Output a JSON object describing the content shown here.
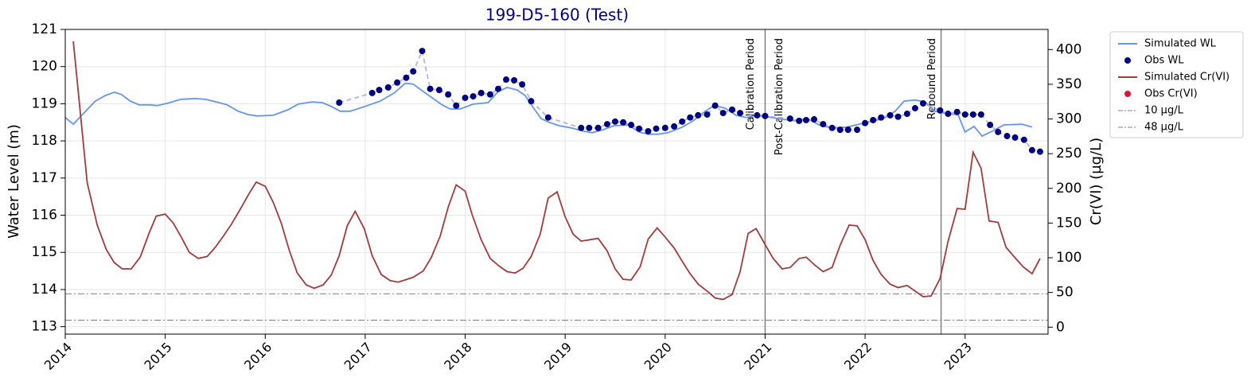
{
  "chart_data": {
    "type": "line",
    "title": "199-D5-160 (Test)",
    "ylabel": "Water Level (m)",
    "y2label": "Cr(VI) (µg/L)",
    "xlim": [
      2014,
      2023.83
    ],
    "xticks": [
      2014,
      2015,
      2016,
      2017,
      2018,
      2019,
      2020,
      2021,
      2022,
      2023
    ],
    "ylim": [
      112.8,
      121
    ],
    "yticks": [
      113,
      114,
      115,
      116,
      117,
      118,
      119,
      120,
      121
    ],
    "y2lim": [
      -10,
      429
    ],
    "y2ticks": [
      0,
      50,
      100,
      150,
      200,
      250,
      300,
      350,
      400
    ],
    "grid": true,
    "legend": "outside right",
    "series": [
      {
        "name": "Simulated WL",
        "color": "#6495ed",
        "kind": "line",
        "x": [
          2014.0,
          2014.08,
          2014.18,
          2014.3,
          2014.4,
          2014.49,
          2014.56,
          2014.65,
          2014.74,
          2014.85,
          2014.92,
          2015.02,
          2015.16,
          2015.3,
          2015.4,
          2015.51,
          2015.62,
          2015.73,
          2015.83,
          2015.92,
          2016.08,
          2016.23,
          2016.33,
          2016.47,
          2016.57,
          2016.66,
          2016.75,
          2016.85,
          2017.0,
          2017.15,
          2017.29,
          2017.4,
          2017.48,
          2017.58,
          2017.68,
          2017.77,
          2017.85,
          2017.95,
          2018.08,
          2018.23,
          2018.33,
          2018.42,
          2018.52,
          2018.6,
          2018.68,
          2018.76,
          2018.84,
          2018.94,
          2019.06,
          2019.19,
          2019.27,
          2019.38,
          2019.49,
          2019.63,
          2019.74,
          2019.83,
          2019.93,
          2020.03,
          2020.17,
          2020.28,
          2020.4,
          2020.49,
          2020.6,
          2020.71,
          2020.81,
          2020.92,
          2021.02,
          2021.18,
          2021.3,
          2021.42,
          2021.54,
          2021.66,
          2021.82,
          2021.94,
          2022.06,
          2022.18,
          2022.3,
          2022.39,
          2022.5,
          2022.6,
          2022.7,
          2022.82,
          2022.93,
          2023.0,
          2023.09,
          2023.17,
          2023.27,
          2023.39,
          2023.57,
          2023.67
        ],
        "values": [
          118.63,
          118.45,
          118.73,
          119.07,
          119.22,
          119.31,
          119.25,
          119.07,
          118.97,
          118.97,
          118.95,
          119.01,
          119.12,
          119.14,
          119.12,
          119.05,
          118.97,
          118.8,
          118.71,
          118.67,
          118.69,
          118.84,
          118.99,
          119.05,
          119.03,
          118.93,
          118.8,
          118.8,
          118.93,
          119.07,
          119.29,
          119.55,
          119.53,
          119.33,
          119.14,
          118.97,
          118.86,
          118.86,
          118.99,
          119.03,
          119.33,
          119.44,
          119.37,
          119.22,
          118.9,
          118.6,
          118.5,
          118.41,
          118.35,
          118.26,
          118.22,
          118.3,
          118.41,
          118.43,
          118.24,
          118.18,
          118.18,
          118.22,
          118.37,
          118.54,
          118.8,
          118.95,
          118.88,
          118.69,
          118.63,
          118.69,
          118.65,
          118.58,
          118.54,
          118.6,
          118.43,
          118.35,
          118.37,
          118.45,
          118.52,
          118.6,
          118.8,
          119.07,
          119.1,
          119.05,
          118.8,
          118.73,
          118.71,
          118.24,
          118.39,
          118.13,
          118.26,
          118.43,
          118.45,
          118.37
        ]
      },
      {
        "name": "Obs WL",
        "color": "#000080",
        "kind": "scatter",
        "connector": "#b4b4e0",
        "x": [
          2016.74,
          2017.07,
          2017.14,
          2017.23,
          2017.32,
          2017.41,
          2017.48,
          2017.57,
          2017.65,
          2017.74,
          2017.83,
          2017.91,
          2018.0,
          2018.08,
          2018.16,
          2018.25,
          2018.33,
          2018.41,
          2018.49,
          2018.57,
          2018.66,
          2018.83,
          2019.16,
          2019.24,
          2019.33,
          2019.42,
          2019.5,
          2019.58,
          2019.66,
          2019.74,
          2019.83,
          2019.91,
          2020.0,
          2020.09,
          2020.17,
          2020.25,
          2020.33,
          2020.42,
          2020.5,
          2020.58,
          2020.67,
          2020.75,
          2020.92,
          2021.0,
          2021.25,
          2021.34,
          2021.41,
          2021.49,
          2021.58,
          2021.67,
          2021.75,
          2021.83,
          2021.92,
          2022.0,
          2022.08,
          2022.16,
          2022.25,
          2022.33,
          2022.42,
          2022.5,
          2022.58,
          2022.75,
          2022.83,
          2022.92,
          2023.0,
          2023.08,
          2023.16,
          2023.25,
          2023.33,
          2023.42,
          2023.5,
          2023.59,
          2023.67,
          2023.75
        ],
        "values": [
          119.03,
          119.29,
          119.37,
          119.44,
          119.57,
          119.7,
          119.87,
          120.42,
          119.4,
          119.37,
          119.25,
          118.95,
          119.16,
          119.2,
          119.29,
          119.25,
          119.4,
          119.65,
          119.63,
          119.52,
          119.07,
          118.63,
          118.35,
          118.35,
          118.35,
          118.45,
          118.52,
          118.5,
          118.43,
          118.33,
          118.26,
          118.33,
          118.35,
          118.39,
          118.52,
          118.63,
          118.69,
          118.71,
          118.95,
          118.75,
          118.84,
          118.75,
          118.69,
          118.67,
          118.6,
          118.54,
          118.56,
          118.58,
          118.45,
          118.35,
          118.3,
          118.3,
          118.3,
          118.48,
          118.56,
          118.63,
          118.69,
          118.65,
          118.73,
          118.88,
          119.01,
          118.82,
          118.73,
          118.78,
          118.71,
          118.71,
          118.71,
          118.43,
          118.24,
          118.13,
          118.09,
          118.03,
          117.75,
          117.71
        ]
      },
      {
        "name": "Simulated Cr(VI)",
        "color": "#a23b3b",
        "kind": "line",
        "axis": "y2",
        "x": [
          2014.08,
          2014.22,
          2014.32,
          2014.41,
          2014.49,
          2014.57,
          2014.66,
          2014.75,
          2014.84,
          2014.91,
          2015.0,
          2015.08,
          2015.16,
          2015.24,
          2015.33,
          2015.42,
          2015.5,
          2015.58,
          2015.66,
          2015.75,
          2015.84,
          2015.91,
          2016.0,
          2016.08,
          2016.16,
          2016.24,
          2016.32,
          2016.41,
          2016.49,
          2016.58,
          2016.66,
          2016.74,
          2016.82,
          2016.9,
          2016.99,
          2017.07,
          2017.16,
          2017.25,
          2017.33,
          2017.4,
          2017.48,
          2017.58,
          2017.66,
          2017.75,
          2017.83,
          2017.91,
          2018.0,
          2018.07,
          2018.16,
          2018.25,
          2018.34,
          2018.42,
          2018.5,
          2018.58,
          2018.66,
          2018.75,
          2018.83,
          2018.92,
          2019.0,
          2019.08,
          2019.16,
          2019.25,
          2019.33,
          2019.42,
          2019.5,
          2019.58,
          2019.66,
          2019.75,
          2019.83,
          2019.92,
          2020.0,
          2020.09,
          2020.17,
          2020.25,
          2020.33,
          2020.42,
          2020.5,
          2020.58,
          2020.67,
          2020.75,
          2020.83,
          2020.91,
          2021.0,
          2021.08,
          2021.17,
          2021.25,
          2021.34,
          2021.41,
          2021.5,
          2021.58,
          2021.67,
          2021.75,
          2021.84,
          2021.92,
          2022.0,
          2022.08,
          2022.16,
          2022.25,
          2022.33,
          2022.42,
          2022.5,
          2022.58,
          2022.66,
          2022.75,
          2022.83,
          2022.92,
          2023.0,
          2023.08,
          2023.16,
          2023.24,
          2023.33,
          2023.41,
          2023.5,
          2023.58,
          2023.67,
          2023.75
        ],
        "values": [
          412,
          208,
          147,
          112,
          93,
          84,
          84,
          101,
          136,
          160,
          163,
          150,
          130,
          108,
          99,
          102,
          115,
          131,
          148,
          170,
          193,
          209,
          203,
          180,
          150,
          111,
          78,
          61,
          56,
          61,
          75,
          103,
          146,
          167,
          142,
          103,
          76,
          67,
          65,
          68,
          72,
          81,
          100,
          131,
          173,
          205,
          196,
          162,
          126,
          99,
          88,
          80,
          78,
          85,
          102,
          134,
          186,
          195,
          159,
          134,
          124,
          126,
          128,
          110,
          84,
          69,
          68,
          87,
          127,
          143,
          130,
          114,
          95,
          77,
          62,
          52,
          42,
          40,
          47,
          80,
          135,
          142,
          119,
          99,
          84,
          86,
          99,
          101,
          89,
          80,
          86,
          118,
          147,
          146,
          126,
          96,
          76,
          62,
          57,
          60,
          52,
          44,
          45,
          70,
          124,
          171,
          170,
          252,
          229,
          153,
          151,
          115,
          100,
          87,
          77,
          99
        ]
      },
      {
        "name": "Obs Cr(VI)",
        "color": "#dc143c",
        "kind": "scatter",
        "axis": "y2",
        "x": [],
        "values": []
      }
    ],
    "hlines": [
      {
        "name": "10 µg/L",
        "value": 10,
        "axis": "y2",
        "color": "#808080"
      },
      {
        "name": "48 µg/L",
        "value": 48,
        "axis": "y2",
        "color": "#808080"
      }
    ],
    "vlines": [
      {
        "x": 2021.0,
        "labels": [
          "Calibration Period",
          "Post-Calibration Period"
        ]
      },
      {
        "x": 2022.76,
        "labels": [
          "Rebound Period"
        ]
      }
    ]
  }
}
